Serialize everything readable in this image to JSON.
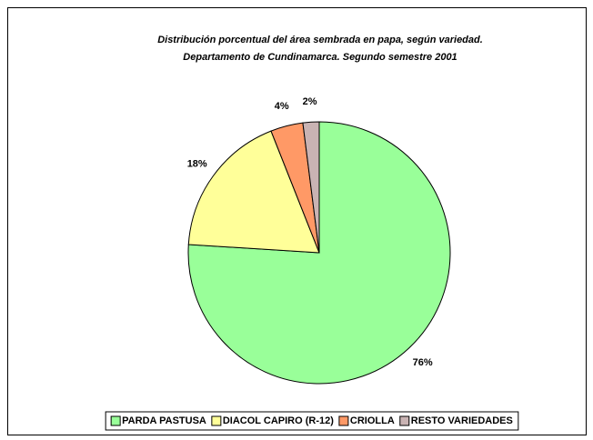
{
  "chart_data": {
    "type": "pie",
    "title": [
      "Distribución porcentual del área sembrada en papa, según variedad.",
      "Departamento de Cundinamarca.  Segundo semestre 2001"
    ],
    "categories": [
      "PARDA PASTUSA",
      "DIACOL CAPIRO (R-12)",
      "CRIOLLA",
      "RESTO VARIEDADES"
    ],
    "values": [
      76,
      18,
      4,
      2
    ],
    "value_labels": [
      "76%",
      "18%",
      "4%",
      "2%"
    ],
    "colors": [
      "#99ff99",
      "#ffff99",
      "#ff9966",
      "#c9b3b3"
    ],
    "legend": "bottom"
  }
}
